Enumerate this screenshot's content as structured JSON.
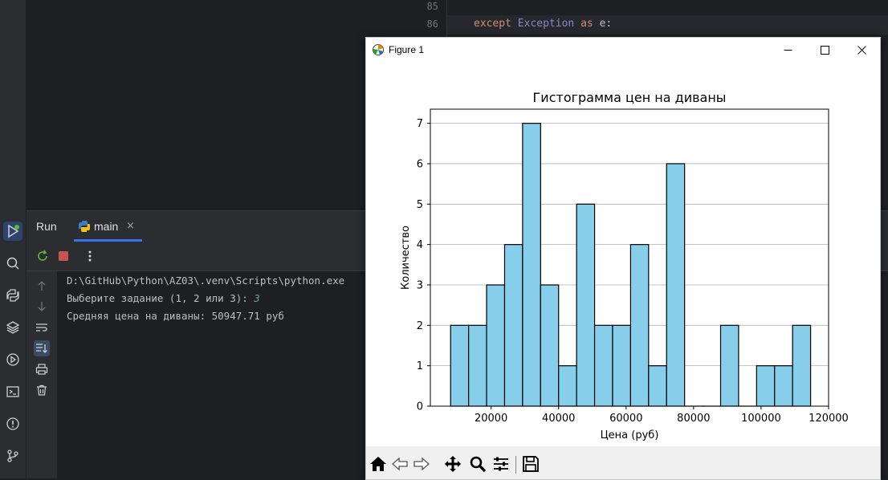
{
  "editor": {
    "lines": [
      {
        "number": "85",
        "code": ""
      },
      {
        "number": "86",
        "keyword1": "except",
        "cls": "Exception",
        "keyword2": "as",
        "rest": "e:"
      }
    ]
  },
  "run_panel": {
    "title": "Run",
    "tab_label": "main",
    "tab_close": "×",
    "console_lines": [
      {
        "text": "D:\\GitHub\\Python\\AZ03\\.venv\\Scripts\\python.exe"
      },
      {
        "text": "Выберите задание (1, 2 или 3): ",
        "input": "3"
      },
      {
        "text": "Средняя цена на диваны: 50947.71 руб"
      }
    ]
  },
  "figure": {
    "window_title": "Figure 1"
  },
  "chart_data": {
    "type": "bar",
    "title": "Гистограмма цен на диваны",
    "xlabel": "Цена (руб)",
    "ylabel": "Количество",
    "xlim": [
      2000,
      120000
    ],
    "ylim": [
      0,
      7.35
    ],
    "xticks": [
      20000,
      40000,
      60000,
      80000,
      100000,
      120000
    ],
    "yticks": [
      0,
      1,
      2,
      3,
      4,
      5,
      6,
      7
    ],
    "grid": "y",
    "bin_edges": [
      8000,
      13333,
      18667,
      24000,
      29333,
      34667,
      40000,
      45333,
      50667,
      56000,
      61333,
      66667,
      72000,
      77333,
      82667,
      88000,
      93333,
      98667,
      104000,
      109333,
      114667
    ],
    "counts": [
      2,
      2,
      3,
      4,
      7,
      3,
      1,
      5,
      2,
      2,
      4,
      1,
      6,
      0,
      0,
      2,
      0,
      1,
      1,
      2
    ],
    "colors": {
      "bar_fill": "#87ceeb",
      "bar_edge": "#000000"
    }
  }
}
